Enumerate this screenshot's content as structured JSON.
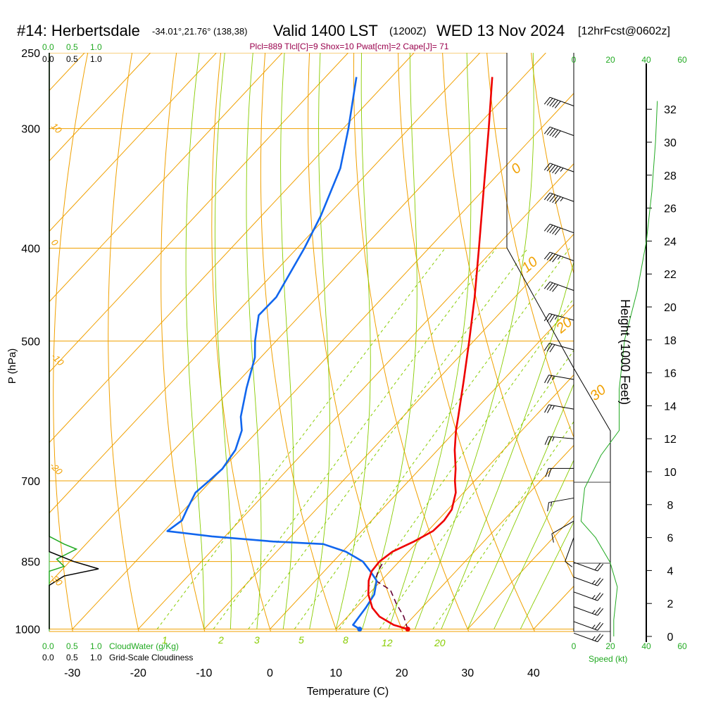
{
  "header": {
    "station": "#14: Herbertsdale",
    "location": "-34.01°,21.76° (138,38)",
    "valid": "Valid 1400 LST",
    "zulu": "(1200Z)",
    "date": "WED 13 Nov 2024",
    "forecast": "[12hrFcst@0602z]",
    "params": "Plcl=889 Tlcl[C]=9 Shox=10 Pwat[cm]=2 Cape[J]= 71"
  },
  "axes": {
    "ylabel": "P (hPa)",
    "xlabel": "Temperature (C)",
    "right_label": "Height (1000 Feet)",
    "cloudwater_label": "CloudWater (g/Kg)",
    "cloudiness_label": "Grid-Scale Cloudiness",
    "speed_label": "Speed (kt)"
  },
  "cloud_scale": {
    "top_green": [
      "0.0",
      "0.5",
      "1.0"
    ],
    "top_black": [
      "0.0",
      "0.5",
      "1.0"
    ],
    "bottom_green": [
      "0.0",
      "0.5",
      "1.0"
    ],
    "bottom_black": [
      "0.0",
      "0.5",
      "1.0"
    ]
  },
  "speed_scale": {
    "top_labels": [
      "0",
      "20",
      "40",
      "60"
    ],
    "bottom_labels": [
      "0",
      "20",
      "40",
      "60"
    ]
  },
  "isotherm_labels": [
    "0",
    "10",
    "20",
    "30"
  ],
  "dry_adiabat_labels": [
    "10",
    "0",
    "-10",
    "-20",
    "-30"
  ],
  "mixing_ratio_labels": [
    "1",
    "2",
    "3",
    "5",
    "8",
    "12",
    "20"
  ],
  "colors": {
    "isobar": "#f0a000",
    "isotherm": "#f0a000",
    "dry_adiabat": "#f0a000",
    "moist_adiabat": "#88cc00",
    "mixing_ratio": "#88cc00",
    "temperature": "#ee0000",
    "dewpoint": "#1166ee",
    "parcel": "#660033",
    "cloud_water": "#22aa22",
    "wind_speed": "#22aa22"
  },
  "chart_data": {
    "type": "skew-t",
    "xlim": [
      -35,
      45
    ],
    "ylim": [
      1000,
      250
    ],
    "log_pressure_axis": true,
    "pressure_ticks": [
      250,
      300,
      400,
      500,
      700,
      850,
      1000
    ],
    "temperature_ticks": [
      -30,
      -20,
      -10,
      0,
      10,
      20,
      30,
      40
    ],
    "height_ticks_kft": [
      0,
      2,
      4,
      6,
      8,
      10,
      12,
      14,
      16,
      18,
      20,
      22,
      24,
      26,
      28,
      30,
      32
    ],
    "temperature": [
      {
        "p": 1000,
        "t": 20.9
      },
      {
        "p": 990,
        "t": 18.2
      },
      {
        "p": 970,
        "t": 14.8
      },
      {
        "p": 950,
        "t": 12.5
      },
      {
        "p": 920,
        "t": 10.0
      },
      {
        "p": 890,
        "t": 8.1
      },
      {
        "p": 870,
        "t": 7.2
      },
      {
        "p": 850,
        "t": 7.0
      },
      {
        "p": 830,
        "t": 7.6
      },
      {
        "p": 810,
        "t": 9.4
      },
      {
        "p": 790,
        "t": 10.8
      },
      {
        "p": 770,
        "t": 11.0
      },
      {
        "p": 750,
        "t": 10.6
      },
      {
        "p": 720,
        "t": 8.8
      },
      {
        "p": 700,
        "t": 7.0
      },
      {
        "p": 680,
        "t": 5.4
      },
      {
        "p": 650,
        "t": 2.6
      },
      {
        "p": 620,
        "t": 0.0
      },
      {
        "p": 600,
        "t": -1.6
      },
      {
        "p": 550,
        "t": -5.9
      },
      {
        "p": 500,
        "t": -10.7
      },
      {
        "p": 450,
        "t": -16.1
      },
      {
        "p": 400,
        "t": -22.4
      },
      {
        "p": 350,
        "t": -29.6
      },
      {
        "p": 300,
        "t": -37.9
      },
      {
        "p": 265,
        "t": -44.7
      }
    ],
    "dewpoint": [
      {
        "p": 1000,
        "t": 13.6
      },
      {
        "p": 990,
        "t": 12.0
      },
      {
        "p": 950,
        "t": 11.5
      },
      {
        "p": 920,
        "t": 10.9
      },
      {
        "p": 890,
        "t": 9.3
      },
      {
        "p": 870,
        "t": 7.0
      },
      {
        "p": 850,
        "t": 4.5
      },
      {
        "p": 830,
        "t": 0.5
      },
      {
        "p": 815,
        "t": -4.0
      },
      {
        "p": 810,
        "t": -12.0
      },
      {
        "p": 800,
        "t": -22.0
      },
      {
        "p": 790,
        "t": -29.5
      },
      {
        "p": 770,
        "t": -28.8
      },
      {
        "p": 750,
        "t": -29.6
      },
      {
        "p": 720,
        "t": -30.7
      },
      {
        "p": 700,
        "t": -30.3
      },
      {
        "p": 680,
        "t": -30.0
      },
      {
        "p": 650,
        "t": -30.7
      },
      {
        "p": 620,
        "t": -32.5
      },
      {
        "p": 600,
        "t": -34.6
      },
      {
        "p": 560,
        "t": -37.8
      },
      {
        "p": 520,
        "t": -40.9
      },
      {
        "p": 500,
        "t": -43.2
      },
      {
        "p": 470,
        "t": -46.3
      },
      {
        "p": 450,
        "t": -46.2
      },
      {
        "p": 400,
        "t": -48.9
      },
      {
        "p": 370,
        "t": -51.0
      },
      {
        "p": 330,
        "t": -54.8
      },
      {
        "p": 300,
        "t": -59.2
      },
      {
        "p": 265,
        "t": -65.3
      }
    ],
    "parcel": [
      {
        "p": 1000,
        "t": 20.9
      },
      {
        "p": 970,
        "t": 18.5
      },
      {
        "p": 940,
        "t": 15.5
      },
      {
        "p": 910,
        "t": 12.7
      },
      {
        "p": 889,
        "t": 9.0
      },
      {
        "p": 870,
        "t": 8.2
      },
      {
        "p": 850,
        "t": 7.6
      }
    ],
    "surface_temperature": {
      "p": 1000,
      "t": 20.9
    },
    "surface_dewpoint": {
      "p": 1000,
      "t": 13.6
    },
    "mixing_ratio_lines_gkg": [
      1,
      2,
      3,
      5,
      8,
      12,
      20
    ],
    "cloud_water_gkg": [
      {
        "p": 1000,
        "v": 0
      },
      {
        "p": 870,
        "v": 0
      },
      {
        "p": 860,
        "v": 0.3
      },
      {
        "p": 845,
        "v": 0.15
      },
      {
        "p": 825,
        "v": 0.55
      },
      {
        "p": 815,
        "v": 0.3
      },
      {
        "p": 800,
        "v": 0
      },
      {
        "p": 250,
        "v": 0
      }
    ],
    "cloudiness": [
      {
        "p": 1000,
        "v": 0
      },
      {
        "p": 900,
        "v": 0
      },
      {
        "p": 880,
        "v": 0.3
      },
      {
        "p": 865,
        "v": 1.0
      },
      {
        "p": 850,
        "v": 0.5
      },
      {
        "p": 830,
        "v": 0
      },
      {
        "p": 250,
        "v": 0
      }
    ],
    "wind_speed_kt": [
      {
        "h": 0,
        "v": 22
      },
      {
        "h": 1,
        "v": 22
      },
      {
        "h": 3,
        "v": 24
      },
      {
        "h": 4.5,
        "v": 20
      },
      {
        "h": 6,
        "v": 12
      },
      {
        "h": 7,
        "v": 4
      },
      {
        "h": 9,
        "v": 6
      },
      {
        "h": 11,
        "v": 15
      },
      {
        "h": 12.5,
        "v": 25
      },
      {
        "h": 15,
        "v": 25
      },
      {
        "h": 18,
        "v": 28
      },
      {
        "h": 21,
        "v": 35
      },
      {
        "h": 24,
        "v": 40
      },
      {
        "h": 27,
        "v": 43
      },
      {
        "h": 30,
        "v": 45
      },
      {
        "h": 32.5,
        "v": 46
      }
    ],
    "wind_barbs_kft": [
      {
        "h": 32.2,
        "dir": 290,
        "spd": 50
      },
      {
        "h": 30.4,
        "dir": 290,
        "spd": 50
      },
      {
        "h": 28.2,
        "dir": 290,
        "spd": 55
      },
      {
        "h": 26.4,
        "dir": 290,
        "spd": 55
      },
      {
        "h": 24.5,
        "dir": 290,
        "spd": 50
      },
      {
        "h": 22.8,
        "dir": 290,
        "spd": 45
      },
      {
        "h": 21.0,
        "dir": 290,
        "spd": 40
      },
      {
        "h": 19.2,
        "dir": 285,
        "spd": 35
      },
      {
        "h": 17.4,
        "dir": 285,
        "spd": 30
      },
      {
        "h": 15.6,
        "dir": 280,
        "spd": 25
      },
      {
        "h": 13.8,
        "dir": 280,
        "spd": 25
      },
      {
        "h": 12.0,
        "dir": 275,
        "spd": 25
      },
      {
        "h": 10.2,
        "dir": 270,
        "spd": 20
      },
      {
        "h": 8.4,
        "dir": 260,
        "spd": 15
      },
      {
        "h": 7.0,
        "dir": 240,
        "spd": 10
      },
      {
        "h": 6.0,
        "dir": 200,
        "spd": 10
      },
      {
        "h": 4.5,
        "dir": 110,
        "spd": 20
      },
      {
        "h": 3.6,
        "dir": 110,
        "spd": 25
      },
      {
        "h": 2.7,
        "dir": 110,
        "spd": 25
      },
      {
        "h": 1.8,
        "dir": 110,
        "spd": 25
      },
      {
        "h": 0.9,
        "dir": 110,
        "spd": 25
      },
      {
        "h": 0.2,
        "dir": 110,
        "spd": 25
      }
    ]
  }
}
